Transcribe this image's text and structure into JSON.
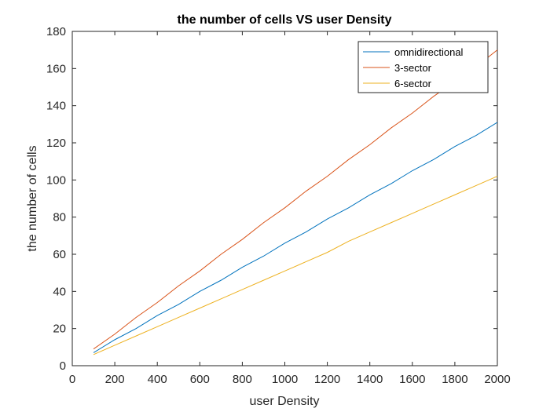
{
  "chart_data": {
    "type": "line",
    "title": "the number of cells  VS user Density",
    "xlabel": "user Density",
    "ylabel": "the number of cells",
    "xlim": [
      0,
      2000
    ],
    "ylim": [
      0,
      180
    ],
    "xticks": [
      0,
      200,
      400,
      600,
      800,
      1000,
      1200,
      1400,
      1600,
      1800,
      2000
    ],
    "yticks": [
      0,
      20,
      40,
      60,
      80,
      100,
      120,
      140,
      160,
      180
    ],
    "grid": false,
    "legend_position": "top-right",
    "x": [
      100,
      200,
      300,
      400,
      500,
      600,
      700,
      800,
      900,
      1000,
      1100,
      1200,
      1300,
      1400,
      1500,
      1600,
      1700,
      1800,
      1900,
      2000
    ],
    "series": [
      {
        "name": "omnidirectional",
        "color": "#0072BD",
        "values": [
          7,
          14,
          20,
          27,
          33,
          40,
          46,
          53,
          59,
          66,
          72,
          79,
          85,
          92,
          98,
          105,
          111,
          118,
          124,
          131
        ]
      },
      {
        "name": "3-sector",
        "color": "#D95319",
        "values": [
          9,
          17,
          26,
          34,
          43,
          51,
          60,
          68,
          77,
          85,
          94,
          102,
          111,
          119,
          128,
          136,
          145,
          153,
          161,
          170
        ]
      },
      {
        "name": "6-sector",
        "color": "#EDB120",
        "values": [
          6,
          11,
          16,
          21,
          26,
          31,
          36,
          41,
          46,
          51,
          56,
          61,
          67,
          72,
          77,
          82,
          87,
          92,
          97,
          102
        ]
      }
    ]
  }
}
